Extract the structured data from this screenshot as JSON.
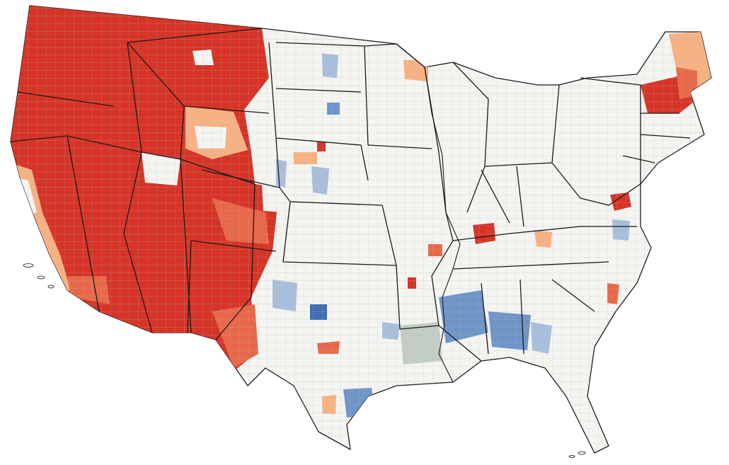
{
  "map": {
    "colors": {
      "background": "#ffffff",
      "land": "#f4f4f1",
      "border": "#1a1a1a",
      "county_line": "#b9b9b9",
      "dark_red": "#d63427",
      "mid_red": "#e8684a",
      "light_orange": "#f6b283",
      "light_gray_green": "#c3cdc5",
      "light_blue": "#a8bfdc",
      "mid_blue": "#6f95c9",
      "dark_blue": "#3f6db5"
    }
  }
}
